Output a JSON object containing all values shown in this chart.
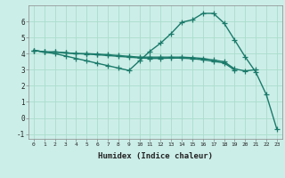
{
  "title": "",
  "xlabel": "Humidex (Indice chaleur)",
  "background_color": "#cceee8",
  "grid_color": "#aaddcc",
  "line_color": "#1a7a6a",
  "x": [
    0,
    1,
    2,
    3,
    4,
    5,
    6,
    7,
    8,
    9,
    10,
    11,
    12,
    13,
    14,
    15,
    16,
    17,
    18,
    19,
    20,
    21,
    22,
    23
  ],
  "line1": [
    4.2,
    4.1,
    4.1,
    4.05,
    4.0,
    4.0,
    3.97,
    3.93,
    3.88,
    3.83,
    3.78,
    3.78,
    3.78,
    3.78,
    3.78,
    3.75,
    3.7,
    3.6,
    3.5,
    3.05,
    2.92,
    3.0,
    null,
    null
  ],
  "line2": [
    4.2,
    4.1,
    4.1,
    4.05,
    4.0,
    3.97,
    3.93,
    3.88,
    3.83,
    3.78,
    3.73,
    3.7,
    3.7,
    3.72,
    3.72,
    3.68,
    3.62,
    3.52,
    3.42,
    2.98,
    null,
    null,
    null,
    null
  ],
  "line3": [
    4.2,
    4.1,
    4.0,
    3.85,
    3.7,
    3.55,
    3.4,
    3.25,
    3.1,
    2.95,
    3.55,
    4.15,
    4.65,
    5.25,
    5.95,
    6.1,
    6.5,
    6.5,
    5.9,
    4.85,
    3.8,
    2.85,
    1.45,
    -0.7
  ],
  "ylim": [
    -1.3,
    7.0
  ],
  "xlim": [
    -0.5,
    23.5
  ],
  "yticks": [
    -1,
    0,
    1,
    2,
    3,
    4,
    5,
    6
  ],
  "xticks": [
    0,
    1,
    2,
    3,
    4,
    5,
    6,
    7,
    8,
    9,
    10,
    11,
    12,
    13,
    14,
    15,
    16,
    17,
    18,
    19,
    20,
    21,
    22,
    23
  ],
  "marker": "+",
  "markersize": 4,
  "linewidth": 1.0
}
